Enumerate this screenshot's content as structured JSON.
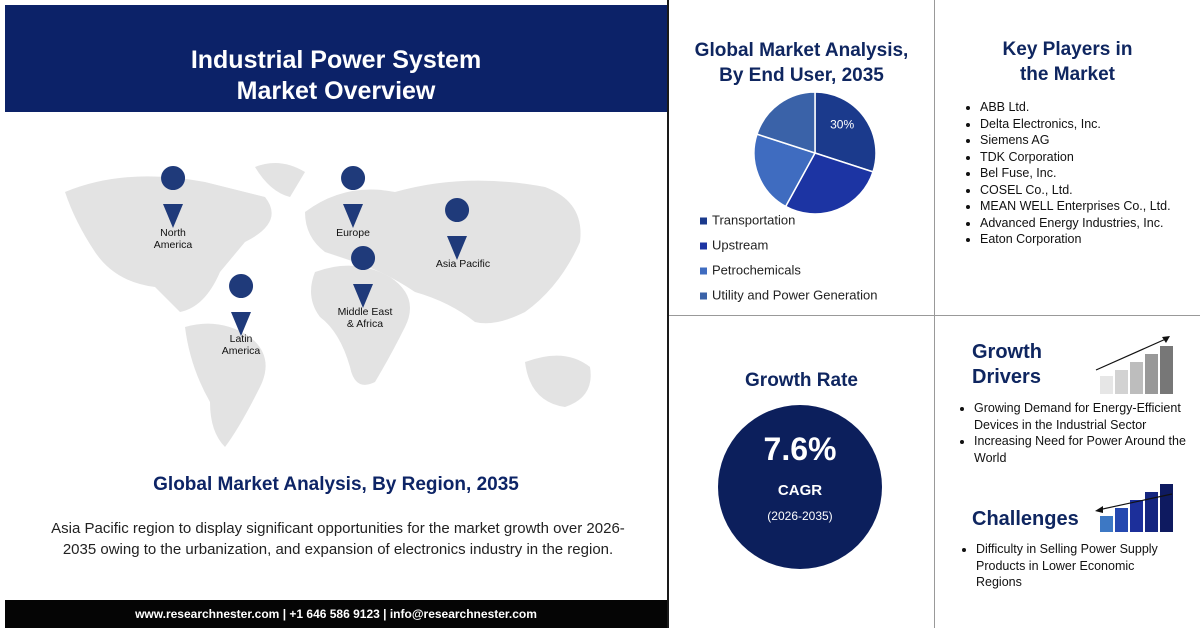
{
  "header": {
    "title_lines": [
      "Industrial Power System",
      "Market Overview"
    ]
  },
  "map_labels": [
    [
      "North",
      "America"
    ],
    [
      "Europe"
    ],
    [
      "Asia Pacific"
    ],
    [
      "Middle East",
      "& Africa"
    ],
    [
      "Latin",
      "America"
    ]
  ],
  "region_heading": "Global Market Analysis, By Region, 2035",
  "region_text": "Asia Pacific region to display significant opportunities for the market growth over 2026-2035 owing to the urbanization, and expansion of electronics industry in the region.",
  "footer": "www.researchnester.com | +1 646 586 9123 | info@researchnester.com",
  "chart_data": {
    "type": "pie",
    "title_lines": [
      "Global Market Analysis,",
      "By End User, 2035"
    ],
    "categories": [
      "Transportation",
      "Upstream",
      "Petrochemicals",
      "Utility and Power Generation"
    ],
    "values": [
      30,
      28,
      22,
      20
    ],
    "value_labels": [
      "30%",
      null,
      null,
      null
    ],
    "colors": [
      "#1b3a8c",
      "#1c34a3",
      "#3f6cc0",
      "#3a62a8"
    ]
  },
  "key_players": {
    "title_lines": [
      "Key Players in",
      "the Market"
    ],
    "items": [
      "ABB Ltd.",
      "Delta Electronics, Inc.",
      "Siemens AG",
      "TDK Corporation",
      "Bel Fuse, Inc.",
      "COSEL Co., Ltd.",
      "MEAN WELL Enterprises Co., Ltd.",
      "Advanced Energy Industries, Inc.",
      "Eaton Corporation"
    ]
  },
  "growth_rate": {
    "title": "Growth Rate",
    "value": "7.6%",
    "label": "CAGR",
    "period": "(2026-2035)"
  },
  "growth_drivers": {
    "title_lines": [
      "Growth",
      "Drivers"
    ],
    "items": [
      "Growing Demand for Energy-Efficient Devices in the Industrial Sector",
      "Increasing Need for Power Around the World"
    ]
  },
  "challenges": {
    "title": "Challenges",
    "items": [
      "Difficulty in Selling Power Supply Products in Lower Economic Regions"
    ]
  }
}
